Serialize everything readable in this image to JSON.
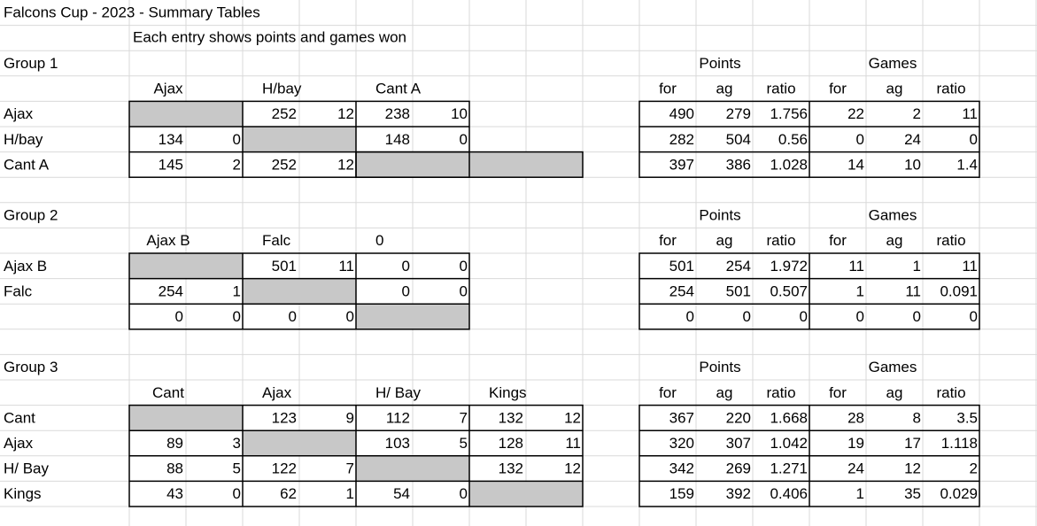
{
  "title": "Falcons Cup - 2023 - Summary Tables",
  "subtitle": "Each entry shows points and games won",
  "groups": [
    {
      "label": "Group 1",
      "columns": [
        "Ajax",
        "H/bay",
        "Cant A"
      ],
      "rows": [
        {
          "name": "Ajax",
          "results": [
            null,
            [
              252,
              12
            ],
            [
              238,
              10
            ]
          ]
        },
        {
          "name": "H/bay",
          "results": [
            [
              134,
              0
            ],
            null,
            [
              148,
              0
            ]
          ]
        },
        {
          "name": "Cant A",
          "results": [
            [
              145,
              2
            ],
            [
              252,
              12
            ],
            null
          ]
        }
      ],
      "points_header": "Points",
      "games_header": "Games",
      "summary_columns": [
        "for",
        "ag",
        "ratio",
        "for",
        "ag",
        "ratio"
      ],
      "summary": [
        [
          490,
          279,
          1.756,
          22,
          2,
          11
        ],
        [
          282,
          504,
          0.56,
          0,
          24,
          0
        ],
        [
          397,
          386,
          1.028,
          14,
          10,
          1.4
        ]
      ]
    },
    {
      "label": "Group 2",
      "columns": [
        "Ajax B",
        "Falc",
        "0"
      ],
      "rows": [
        {
          "name": "Ajax B",
          "results": [
            null,
            [
              501,
              11
            ],
            [
              0,
              0
            ]
          ]
        },
        {
          "name": "Falc",
          "results": [
            [
              254,
              1
            ],
            null,
            [
              0,
              0
            ]
          ]
        },
        {
          "name": null,
          "results": [
            [
              0,
              0
            ],
            [
              0,
              0
            ],
            null
          ]
        }
      ],
      "points_header": "Points",
      "games_header": "Games",
      "summary_columns": [
        "for",
        "ag",
        "ratio",
        "for",
        "ag",
        "ratio"
      ],
      "summary": [
        [
          501,
          254,
          1.972,
          11,
          1,
          11
        ],
        [
          254,
          501,
          0.507,
          1,
          11,
          0.091
        ],
        [
          0,
          0,
          0,
          0,
          0,
          0
        ]
      ]
    },
    {
      "label": "Group 3",
      "columns": [
        "Cant",
        "Ajax",
        "H/ Bay",
        "Kings"
      ],
      "rows": [
        {
          "name": "Cant",
          "results": [
            null,
            [
              123,
              9
            ],
            [
              112,
              7
            ],
            [
              132,
              12
            ]
          ]
        },
        {
          "name": "Ajax",
          "results": [
            [
              89,
              3
            ],
            null,
            [
              103,
              5
            ],
            [
              128,
              11
            ]
          ]
        },
        {
          "name": "H/ Bay",
          "results": [
            [
              88,
              5
            ],
            [
              122,
              7
            ],
            null,
            [
              132,
              12
            ]
          ]
        },
        {
          "name": "Kings",
          "results": [
            [
              43,
              0
            ],
            [
              62,
              1
            ],
            [
              54,
              0
            ],
            null
          ]
        }
      ],
      "points_header": "Points",
      "games_header": "Games",
      "summary_columns": [
        "for",
        "ag",
        "ratio",
        "for",
        "ag",
        "ratio"
      ],
      "summary": [
        [
          367,
          220,
          1.668,
          28,
          8,
          3.5
        ],
        [
          320,
          307,
          1.042,
          19,
          17,
          1.118
        ],
        [
          342,
          269,
          1.271,
          24,
          12,
          2
        ],
        [
          159,
          392,
          0.406,
          1,
          35,
          0.029
        ]
      ]
    }
  ]
}
